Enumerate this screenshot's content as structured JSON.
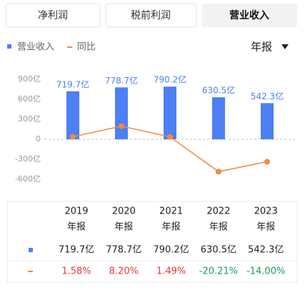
{
  "tabs": [
    "净利润",
    "税前利润",
    "营业收入"
  ],
  "period": "年报",
  "chart_data": {
    "type": "bar",
    "categories": [
      "2019",
      "2020",
      "2021",
      "2022",
      "2023"
    ],
    "series": [
      {
        "name": "营业收入",
        "type": "bar",
        "color": "#4d7ff5",
        "values": [
          719.7,
          778.7,
          790.2,
          630.5,
          542.3
        ],
        "value_labels": [
          "719.7亿",
          "778.7亿",
          "790.2亿",
          "630.5亿",
          "542.3亿"
        ]
      },
      {
        "name": "同比",
        "type": "line",
        "axis": "y2",
        "color": "#f08a44",
        "values": [
          1.58,
          8.2,
          1.49,
          -20.21,
          -14.0
        ],
        "value_labels": [
          "1.58%",
          "8.20%",
          "1.49%",
          "-20.21%",
          "-14.00%"
        ]
      }
    ],
    "ylim": [
      -600,
      900
    ],
    "yticks": [
      {
        "value": 900,
        "label": "900亿"
      },
      {
        "value": 600,
        "label": "600亿"
      },
      {
        "value": 300,
        "label": "300亿"
      },
      0,
      {
        "value": -300,
        "label": "-300亿"
      },
      {
        "value": -600,
        "label": "-600亿"
      }
    ],
    "y2lim": [
      -25,
      37.5
    ],
    "grid": false
  }
}
